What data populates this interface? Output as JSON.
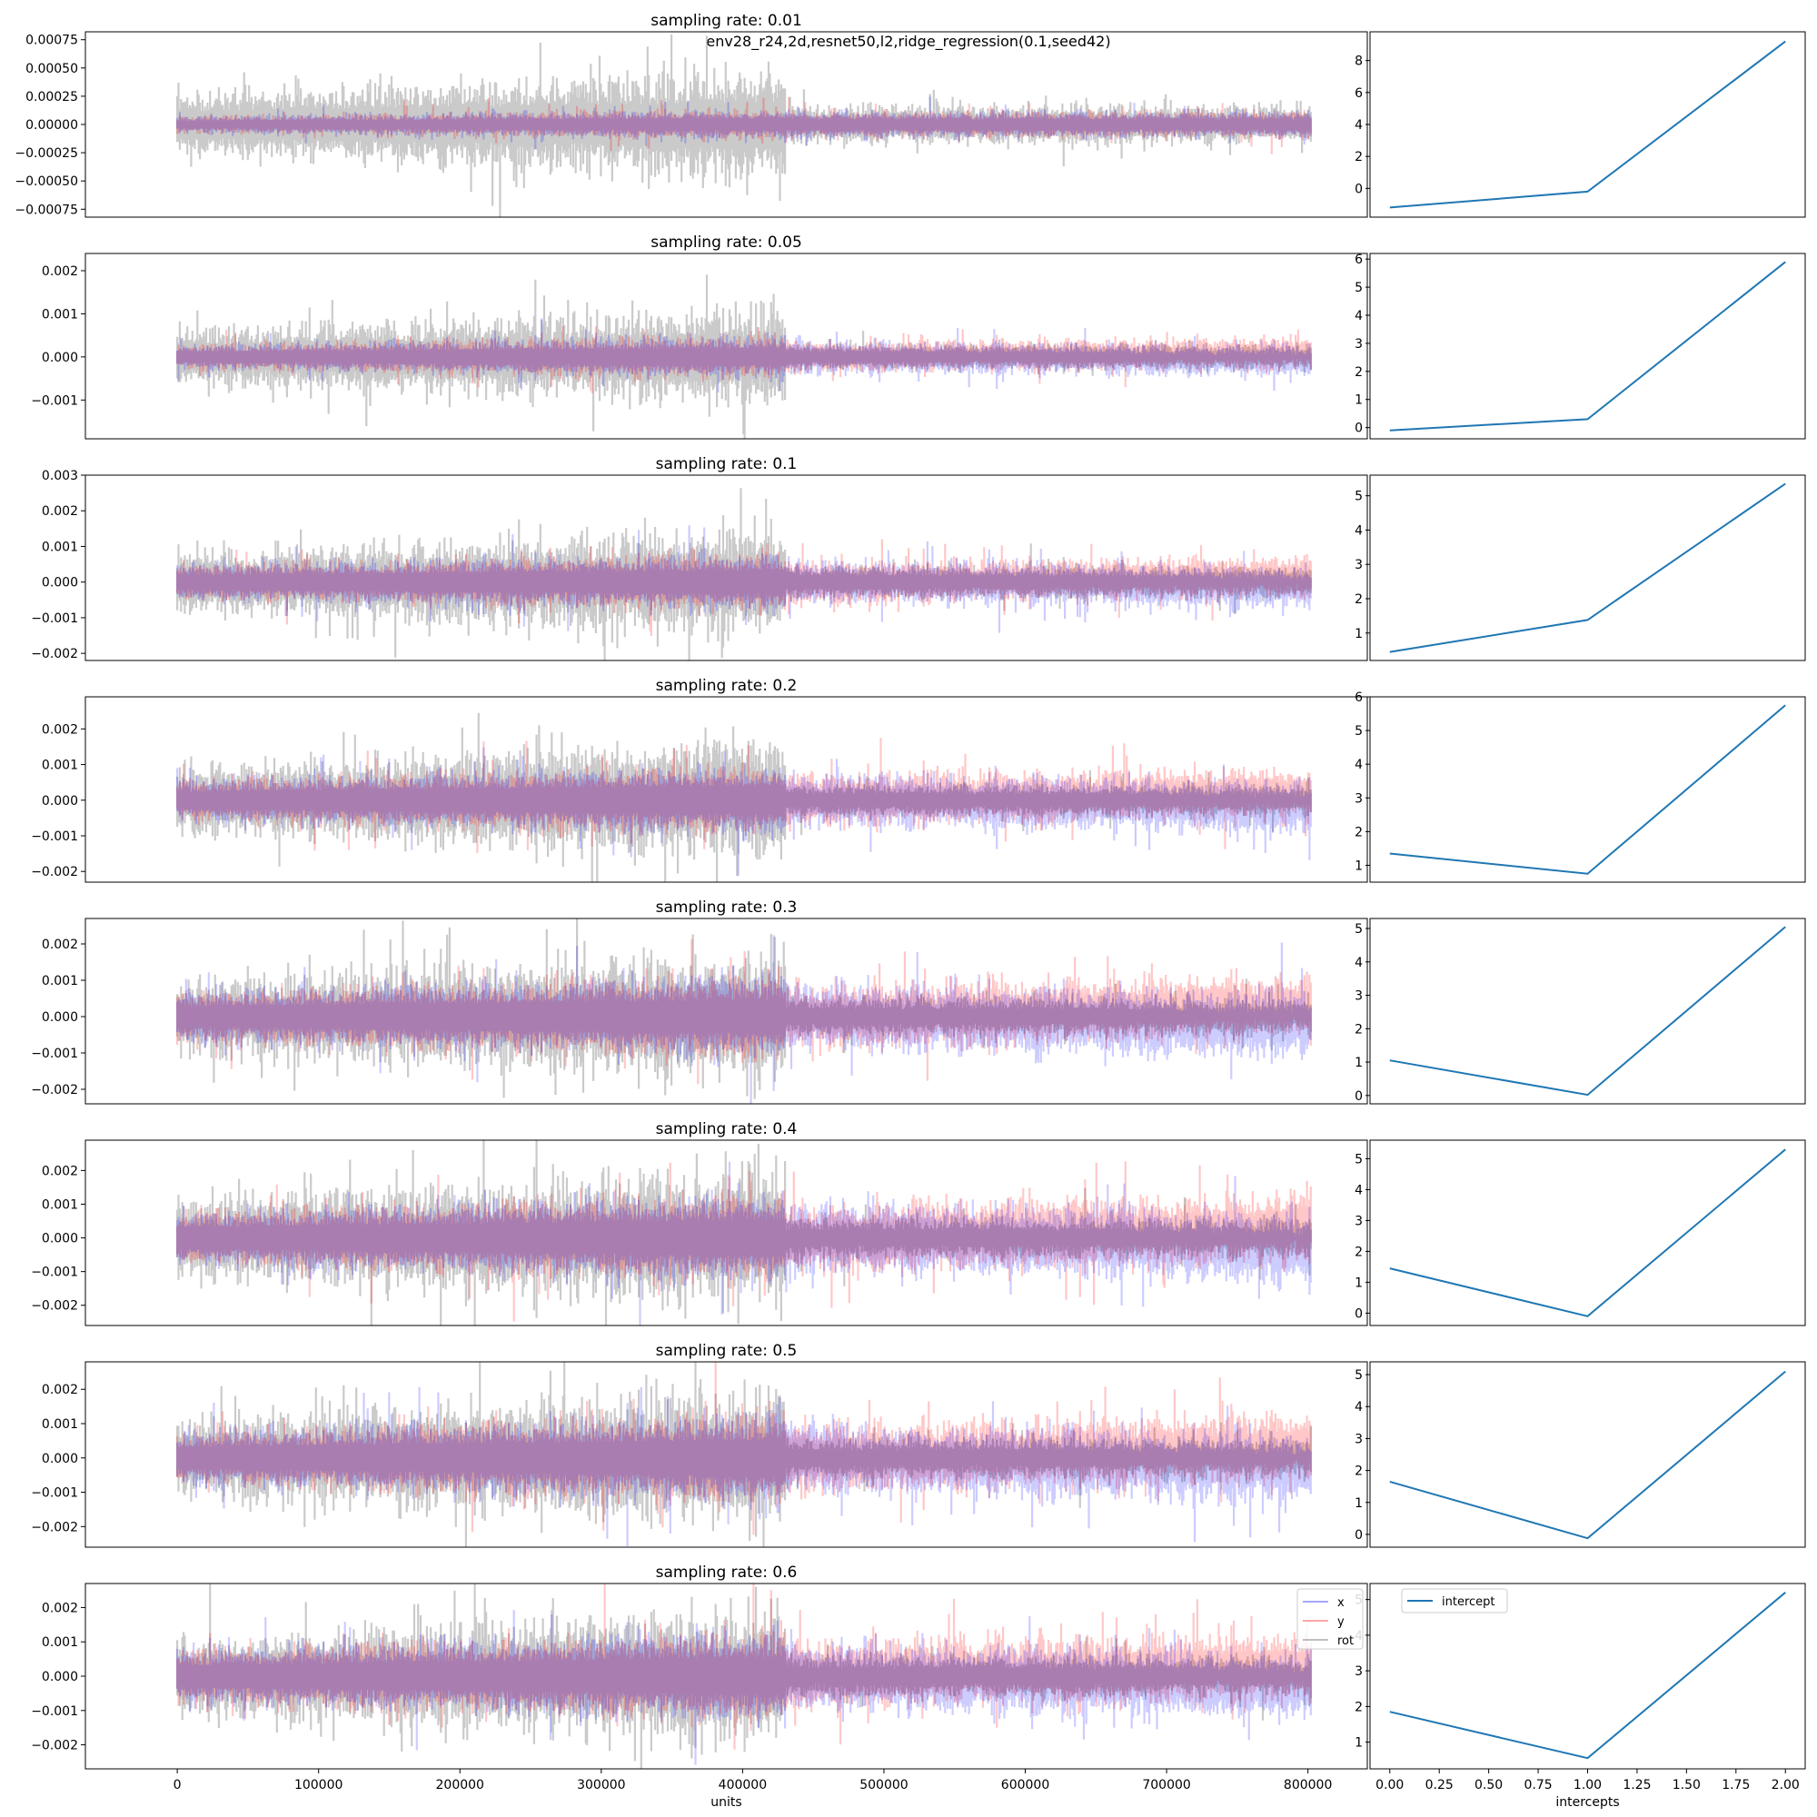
{
  "suptitle": "env28_r24,2d,resnet50,l2,ridge_regression(0.1,seed42)",
  "colors": {
    "x": "#0000ff",
    "y": "#ff0000",
    "rot": "#808080",
    "intercept": "#1f77b4"
  },
  "chart_data": [
    {
      "type": "line",
      "title": "sampling rate: 0.01",
      "ylim": [
        -0.00082,
        0.00082
      ],
      "yticks": [
        -0.00075,
        -0.0005,
        -0.00025,
        0.0,
        0.00025,
        0.0005,
        0.00075
      ],
      "ytick_labels": [
        "−0.00075",
        "−0.00050",
        "−0.00025",
        "0.00000",
        "0.00025",
        "0.00050",
        "0.00075"
      ],
      "amp": {
        "x": 8e-05,
        "y": 8e-05,
        "rot": 0.0003
      },
      "late": {
        "x": 8e-05,
        "y": 8e-05,
        "rot": 0.00012
      },
      "xshift": 0.0,
      "yshift": 0.0
    },
    {
      "type": "line",
      "title": "sampling rate: 0.05",
      "ylim": [
        -0.0019,
        0.0024
      ],
      "yticks": [
        -0.001,
        0.0,
        0.001,
        0.002
      ],
      "ytick_labels": [
        "−0.001",
        "0.000",
        "0.001",
        "0.002"
      ],
      "amp": {
        "x": 0.0003,
        "y": 0.0003,
        "rot": 0.0007
      },
      "late": {
        "x": 0.00025,
        "y": 0.00025,
        "rot": 0.0002
      },
      "xshift": -0.0001,
      "yshift": 0.0001
    },
    {
      "type": "line",
      "title": "sampling rate: 0.1",
      "ylim": [
        -0.0022,
        0.003
      ],
      "yticks": [
        -0.002,
        -0.001,
        0.0,
        0.001,
        0.002,
        0.003
      ],
      "ytick_labels": [
        "−0.002",
        "−0.001",
        "0.000",
        "0.001",
        "0.002",
        "0.003"
      ],
      "amp": {
        "x": 0.0005,
        "y": 0.0005,
        "rot": 0.0009
      },
      "late": {
        "x": 0.0004,
        "y": 0.0004,
        "rot": 0.0003
      },
      "xshift": -0.00015,
      "yshift": 0.00015
    },
    {
      "type": "line",
      "title": "sampling rate: 0.2",
      "ylim": [
        -0.0023,
        0.0029
      ],
      "yticks": [
        -0.002,
        -0.001,
        0.0,
        0.001,
        0.002
      ],
      "ytick_labels": [
        "−0.002",
        "−0.001",
        "0.000",
        "0.001",
        "0.002"
      ],
      "amp": {
        "x": 0.0006,
        "y": 0.0006,
        "rot": 0.001
      },
      "late": {
        "x": 0.0005,
        "y": 0.0005,
        "rot": 0.0003
      },
      "xshift": -0.0002,
      "yshift": 0.0002
    },
    {
      "type": "line",
      "title": "sampling rate: 0.3",
      "ylim": [
        -0.0024,
        0.0027
      ],
      "yticks": [
        -0.002,
        -0.001,
        0.0,
        0.001,
        0.002
      ],
      "ytick_labels": [
        "−0.002",
        "−0.001",
        "0.000",
        "0.001",
        "0.002"
      ],
      "amp": {
        "x": 0.0007,
        "y": 0.0007,
        "rot": 0.0011
      },
      "late": {
        "x": 0.0006,
        "y": 0.0006,
        "rot": 0.00035
      },
      "xshift": -0.00025,
      "yshift": 0.0003
    },
    {
      "type": "line",
      "title": "sampling rate: 0.4",
      "ylim": [
        -0.0026,
        0.0029
      ],
      "yticks": [
        -0.002,
        -0.001,
        0.0,
        0.001,
        0.002
      ],
      "ytick_labels": [
        "−0.002",
        "−0.001",
        "0.000",
        "0.001",
        "0.002"
      ],
      "amp": {
        "x": 0.0008,
        "y": 0.0008,
        "rot": 0.0012
      },
      "late": {
        "x": 0.0007,
        "y": 0.0007,
        "rot": 0.0004
      },
      "xshift": -0.0003,
      "yshift": 0.0003
    },
    {
      "type": "line",
      "title": "sampling rate: 0.5",
      "ylim": [
        -0.0026,
        0.0028
      ],
      "yticks": [
        -0.002,
        -0.001,
        0.0,
        0.001,
        0.002
      ],
      "ytick_labels": [
        "−0.002",
        "−0.001",
        "0.000",
        "0.001",
        "0.002"
      ],
      "amp": {
        "x": 0.0008,
        "y": 0.0008,
        "rot": 0.0012
      },
      "late": {
        "x": 0.0007,
        "y": 0.0007,
        "rot": 0.0004
      },
      "xshift": -0.0003,
      "yshift": 0.0003
    },
    {
      "type": "line",
      "title": "sampling rate: 0.6",
      "ylim": [
        -0.0027,
        0.0027
      ],
      "yticks": [
        -0.002,
        -0.001,
        0.0,
        0.001,
        0.002
      ],
      "ytick_labels": [
        "−0.002",
        "−0.001",
        "0.000",
        "0.001",
        "0.002"
      ],
      "amp": {
        "x": 0.0008,
        "y": 0.0008,
        "rot": 0.0012
      },
      "late": {
        "x": 0.0007,
        "y": 0.0007,
        "rot": 0.0004
      },
      "xshift": -0.0003,
      "yshift": 0.0003
    }
  ],
  "intercepts": [
    {
      "type": "line",
      "x": [
        0,
        1,
        2
      ],
      "values": [
        -1.2,
        -0.2,
        9.2
      ],
      "ylim": [
        -1.8,
        9.8
      ],
      "yticks": [
        0,
        2,
        4,
        6,
        8
      ]
    },
    {
      "type": "line",
      "x": [
        0,
        1,
        2
      ],
      "values": [
        -0.1,
        0.3,
        5.9
      ],
      "ylim": [
        -0.4,
        6.2
      ],
      "yticks": [
        0,
        1,
        2,
        3,
        4,
        5,
        6
      ]
    },
    {
      "type": "line",
      "x": [
        0,
        1,
        2
      ],
      "values": [
        0.45,
        1.38,
        5.35
      ],
      "ylim": [
        0.2,
        5.6
      ],
      "yticks": [
        1,
        2,
        3,
        4,
        5
      ]
    },
    {
      "type": "line",
      "x": [
        0,
        1,
        2
      ],
      "values": [
        1.35,
        0.75,
        5.75
      ],
      "ylim": [
        0.5,
        6.0
      ],
      "yticks": [
        1,
        2,
        3,
        4,
        5,
        6
      ]
    },
    {
      "type": "line",
      "x": [
        0,
        1,
        2
      ],
      "values": [
        1.05,
        0.02,
        5.05
      ],
      "ylim": [
        -0.25,
        5.3
      ],
      "yticks": [
        0,
        1,
        2,
        3,
        4,
        5
      ]
    },
    {
      "type": "line",
      "x": [
        0,
        1,
        2
      ],
      "values": [
        1.45,
        -0.1,
        5.3
      ],
      "ylim": [
        -0.4,
        5.6
      ],
      "yticks": [
        0,
        1,
        2,
        3,
        4,
        5
      ]
    },
    {
      "type": "line",
      "x": [
        0,
        1,
        2
      ],
      "values": [
        1.65,
        -0.12,
        5.1
      ],
      "ylim": [
        -0.4,
        5.4
      ],
      "yticks": [
        0,
        1,
        2,
        3,
        4,
        5
      ]
    },
    {
      "type": "line",
      "x": [
        0,
        1,
        2
      ],
      "values": [
        1.85,
        0.55,
        5.2
      ],
      "ylim": [
        0.25,
        5.45
      ],
      "yticks": [
        1,
        2,
        3,
        4,
        5
      ]
    }
  ],
  "main_x": {
    "xlim": [
      -65000,
      842000
    ],
    "ticks": [
      0,
      100000,
      200000,
      300000,
      400000,
      500000,
      600000,
      700000,
      800000
    ],
    "tick_labels": [
      "0",
      "100000",
      "200000",
      "300000",
      "400000",
      "500000",
      "600000",
      "700000",
      "800000"
    ],
    "xlabel": "units"
  },
  "side_x": {
    "xlim": [
      -0.1,
      2.1
    ],
    "ticks": [
      0,
      0.25,
      0.5,
      0.75,
      1.0,
      1.25,
      1.5,
      1.75,
      2.0
    ],
    "tick_labels": [
      "0.00",
      "0.25",
      "0.50",
      "0.75",
      "1.00",
      "1.25",
      "1.50",
      "1.75",
      "2.00"
    ],
    "xlabel": "intercepts"
  },
  "legend_main": {
    "items": [
      "x",
      "y",
      "rot"
    ]
  },
  "legend_side": {
    "items": [
      "intercept"
    ]
  }
}
